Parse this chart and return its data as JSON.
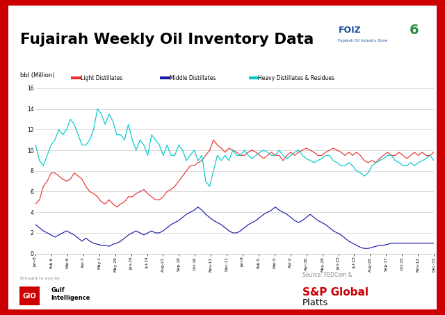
{
  "title": "Fujairah Weekly Oil Inventory Data",
  "ylabel": "bbl (Million)",
  "source_text": "Source: FEDCom &",
  "brought_text": "Brought to you by",
  "background_color": "#ffffff",
  "border_color": "#cc0000",
  "ylim": [
    0,
    16
  ],
  "yticks": [
    0,
    2,
    4,
    6,
    8,
    10,
    12,
    14,
    16
  ],
  "legend_labels": [
    "Light Distillates",
    "Middle Distillates",
    "Heavy Distillates & Residues"
  ],
  "line_colors": [
    "#e63232",
    "#1a1aaa",
    "#00c8c8"
  ],
  "x_labels": [
    "Jan-8",
    "Feb-6",
    "Mar-6",
    "Apr-3",
    "May-1",
    "May-29",
    "Jun-26",
    "Jul-24",
    "Aug-21",
    "Sep-18",
    "Oct-16",
    "Nov-13",
    "Dec-11",
    "Jan-8",
    "Feb-5",
    "Mar-5",
    "Apr-2",
    "Apr-30",
    "May-28",
    "Jun-25",
    "Jul-23",
    "Aug-20",
    "Sep-17",
    "Oct-15",
    "Nov-12",
    "Dec-31"
  ],
  "light_distillates": [
    4.8,
    5.2,
    6.5,
    7.0,
    7.8,
    7.8,
    7.5,
    7.2,
    7.0,
    7.2,
    7.8,
    7.5,
    7.2,
    6.5,
    6.0,
    5.8,
    5.5,
    5.0,
    4.8,
    5.2,
    4.8,
    4.5,
    4.8,
    5.0,
    5.5,
    5.5,
    5.8,
    6.0,
    6.2,
    5.8,
    5.5,
    5.2,
    5.2,
    5.5,
    6.0,
    6.2,
    6.5,
    7.0,
    7.5,
    8.0,
    8.5,
    8.5,
    8.8,
    9.0,
    9.5,
    10.0,
    11.0,
    10.5,
    10.2,
    9.8,
    10.2,
    10.0,
    9.8,
    9.5,
    9.5,
    9.8,
    10.0,
    9.8,
    9.5,
    9.2,
    9.5,
    9.8,
    9.5,
    9.5,
    9.0,
    9.5,
    9.8,
    9.5,
    9.8,
    10.0,
    10.2,
    10.0,
    9.8,
    9.5,
    9.5,
    9.8,
    10.0,
    10.2,
    10.0,
    9.8,
    9.5,
    9.8,
    9.5,
    9.8,
    9.5,
    9.0,
    8.8,
    9.0,
    8.8,
    9.2,
    9.5,
    9.8,
    9.5,
    9.5,
    9.8,
    9.5,
    9.2,
    9.5,
    9.8,
    9.5,
    9.8,
    9.5,
    9.5,
    9.8
  ],
  "middle_distillates": [
    2.8,
    2.5,
    2.2,
    2.0,
    1.8,
    1.6,
    1.8,
    2.0,
    2.2,
    2.0,
    1.8,
    1.5,
    1.2,
    1.5,
    1.2,
    1.0,
    0.9,
    0.8,
    0.8,
    0.7,
    0.9,
    1.0,
    1.2,
    1.5,
    1.8,
    2.0,
    2.2,
    2.0,
    1.8,
    2.0,
    2.2,
    2.0,
    2.0,
    2.2,
    2.5,
    2.8,
    3.0,
    3.2,
    3.5,
    3.8,
    4.0,
    4.2,
    4.5,
    4.2,
    3.8,
    3.5,
    3.2,
    3.0,
    2.8,
    2.5,
    2.2,
    2.0,
    2.0,
    2.2,
    2.5,
    2.8,
    3.0,
    3.2,
    3.5,
    3.8,
    4.0,
    4.2,
    4.5,
    4.2,
    4.0,
    3.8,
    3.5,
    3.2,
    3.0,
    3.2,
    3.5,
    3.8,
    3.5,
    3.2,
    3.0,
    2.8,
    2.5,
    2.2,
    2.0,
    1.8,
    1.5,
    1.2,
    1.0,
    0.8,
    0.6,
    0.5,
    0.5,
    0.6,
    0.7,
    0.8,
    0.8,
    0.9,
    1.0,
    1.0,
    1.0,
    1.0,
    1.0,
    1.0,
    1.0,
    1.0,
    1.0,
    1.0,
    1.0,
    1.0
  ],
  "heavy_distillates": [
    10.5,
    9.0,
    8.5,
    9.5,
    10.5,
    11.0,
    12.0,
    11.5,
    12.0,
    13.0,
    12.5,
    11.5,
    10.5,
    10.5,
    11.0,
    12.0,
    14.0,
    13.5,
    12.5,
    13.5,
    12.8,
    11.5,
    11.5,
    11.0,
    12.5,
    11.0,
    10.0,
    11.0,
    10.5,
    9.5,
    11.5,
    11.0,
    10.5,
    9.5,
    10.5,
    9.5,
    9.5,
    10.5,
    10.0,
    9.0,
    9.5,
    10.0,
    9.0,
    9.5,
    7.0,
    6.5,
    8.0,
    9.5,
    9.0,
    9.5,
    9.0,
    10.0,
    9.5,
    9.5,
    10.0,
    9.5,
    9.2,
    9.5,
    9.8,
    10.0,
    9.8,
    9.5,
    9.5,
    10.0,
    9.5,
    9.2,
    9.5,
    9.8,
    10.0,
    9.5,
    9.2,
    9.0,
    8.8,
    9.0,
    9.2,
    9.5,
    9.5,
    9.0,
    8.8,
    8.5,
    8.5,
    8.8,
    8.5,
    8.0,
    7.8,
    7.5,
    7.8,
    8.5,
    8.8,
    9.0,
    9.2,
    9.5,
    9.5,
    9.0,
    8.8,
    8.5,
    8.5,
    8.8,
    8.5,
    8.8,
    9.0,
    9.2,
    9.5,
    9.0
  ]
}
